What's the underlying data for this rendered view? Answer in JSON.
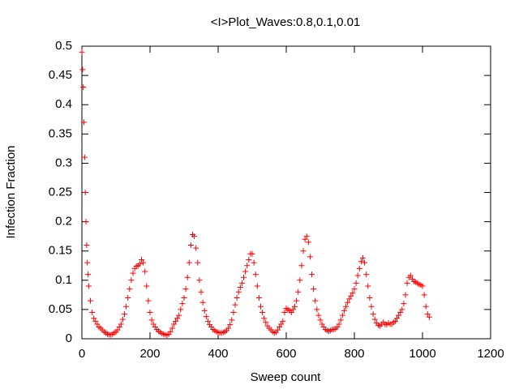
{
  "chart_data": {
    "type": "scatter",
    "title": "<I>Plot_Waves:0.8,0.1,0.01",
    "xlabel": "Sweep count",
    "ylabel": "Infection Fraction",
    "xlim": [
      0,
      1200
    ],
    "xticks": [
      0,
      200,
      400,
      600,
      800,
      1000,
      1200
    ],
    "ylim": [
      0,
      0.5
    ],
    "yticks": [
      0,
      0.05,
      0.1,
      0.15,
      0.2,
      0.25,
      0.3,
      0.35,
      0.4,
      0.45,
      0.5
    ],
    "color": "#ff0000",
    "marker": "+",
    "x": [
      0,
      2,
      4,
      6,
      8,
      10,
      12,
      14,
      16,
      18,
      20,
      25,
      30,
      35,
      40,
      45,
      50,
      55,
      60,
      65,
      70,
      75,
      80,
      85,
      90,
      95,
      100,
      105,
      110,
      115,
      120,
      125,
      130,
      135,
      140,
      145,
      150,
      155,
      160,
      165,
      170,
      175,
      180,
      185,
      190,
      195,
      200,
      205,
      210,
      215,
      220,
      225,
      230,
      235,
      240,
      245,
      250,
      255,
      260,
      265,
      270,
      275,
      280,
      285,
      290,
      295,
      300,
      305,
      310,
      315,
      320,
      325,
      330,
      335,
      340,
      345,
      350,
      355,
      360,
      365,
      370,
      375,
      380,
      385,
      390,
      395,
      400,
      405,
      410,
      415,
      420,
      425,
      430,
      435,
      440,
      445,
      450,
      455,
      460,
      465,
      470,
      475,
      480,
      485,
      490,
      495,
      500,
      505,
      510,
      515,
      520,
      525,
      530,
      535,
      540,
      545,
      550,
      555,
      560,
      565,
      570,
      575,
      580,
      585,
      590,
      595,
      600,
      605,
      610,
      615,
      620,
      625,
      630,
      635,
      640,
      645,
      650,
      655,
      660,
      665,
      670,
      675,
      680,
      685,
      690,
      695,
      700,
      705,
      710,
      715,
      720,
      725,
      730,
      735,
      740,
      745,
      750,
      755,
      760,
      765,
      770,
      775,
      780,
      785,
      790,
      795,
      800,
      805,
      810,
      815,
      820,
      825,
      830,
      835,
      840,
      845,
      850,
      855,
      860,
      865,
      870,
      875,
      880,
      885,
      890,
      895,
      900,
      905,
      910,
      915,
      920,
      925,
      930,
      935,
      940,
      945,
      950,
      955,
      960,
      965,
      970,
      975,
      980,
      985,
      990,
      995,
      1000,
      1005,
      1010,
      1015,
      1020
    ],
    "values": [
      0.49,
      0.46,
      0.43,
      0.37,
      0.31,
      0.25,
      0.2,
      0.16,
      0.13,
      0.11,
      0.09,
      0.065,
      0.045,
      0.035,
      0.03,
      0.025,
      0.02,
      0.018,
      0.015,
      0.012,
      0.01,
      0.008,
      0.007,
      0.007,
      0.008,
      0.01,
      0.012,
      0.015,
      0.02,
      0.025,
      0.033,
      0.042,
      0.055,
      0.07,
      0.085,
      0.1,
      0.112,
      0.12,
      0.124,
      0.125,
      0.128,
      0.135,
      0.13,
      0.115,
      0.09,
      0.065,
      0.045,
      0.032,
      0.025,
      0.02,
      0.016,
      0.013,
      0.011,
      0.009,
      0.008,
      0.007,
      0.006,
      0.008,
      0.012,
      0.018,
      0.025,
      0.03,
      0.035,
      0.04,
      0.05,
      0.06,
      0.07,
      0.085,
      0.105,
      0.13,
      0.16,
      0.178,
      0.175,
      0.155,
      0.13,
      0.1,
      0.08,
      0.062,
      0.048,
      0.038,
      0.03,
      0.024,
      0.02,
      0.016,
      0.014,
      0.012,
      0.011,
      0.01,
      0.01,
      0.011,
      0.012,
      0.014,
      0.018,
      0.024,
      0.032,
      0.045,
      0.058,
      0.07,
      0.08,
      0.088,
      0.095,
      0.105,
      0.115,
      0.125,
      0.135,
      0.145,
      0.145,
      0.13,
      0.11,
      0.09,
      0.07,
      0.055,
      0.045,
      0.035,
      0.028,
      0.022,
      0.018,
      0.015,
      0.012,
      0.01,
      0.011,
      0.015,
      0.02,
      0.025,
      0.03,
      0.045,
      0.052,
      0.05,
      0.048,
      0.045,
      0.05,
      0.055,
      0.065,
      0.08,
      0.1,
      0.125,
      0.15,
      0.17,
      0.175,
      0.165,
      0.14,
      0.11,
      0.085,
      0.065,
      0.05,
      0.04,
      0.032,
      0.025,
      0.02,
      0.016,
      0.014,
      0.013,
      0.014,
      0.016,
      0.016,
      0.017,
      0.02,
      0.025,
      0.032,
      0.04,
      0.048,
      0.055,
      0.062,
      0.068,
      0.073,
      0.078,
      0.085,
      0.095,
      0.108,
      0.12,
      0.132,
      0.138,
      0.13,
      0.11,
      0.09,
      0.07,
      0.055,
      0.042,
      0.033,
      0.027,
      0.023,
      0.022,
      0.025,
      0.028,
      0.025,
      0.024,
      0.027,
      0.025,
      0.025,
      0.028,
      0.03,
      0.035,
      0.04,
      0.045,
      0.05,
      0.06,
      0.075,
      0.095,
      0.105,
      0.108,
      0.102,
      0.098,
      0.097,
      0.095,
      0.093,
      0.092,
      0.09,
      0.075,
      0.055,
      0.042,
      0.037
    ]
  }
}
